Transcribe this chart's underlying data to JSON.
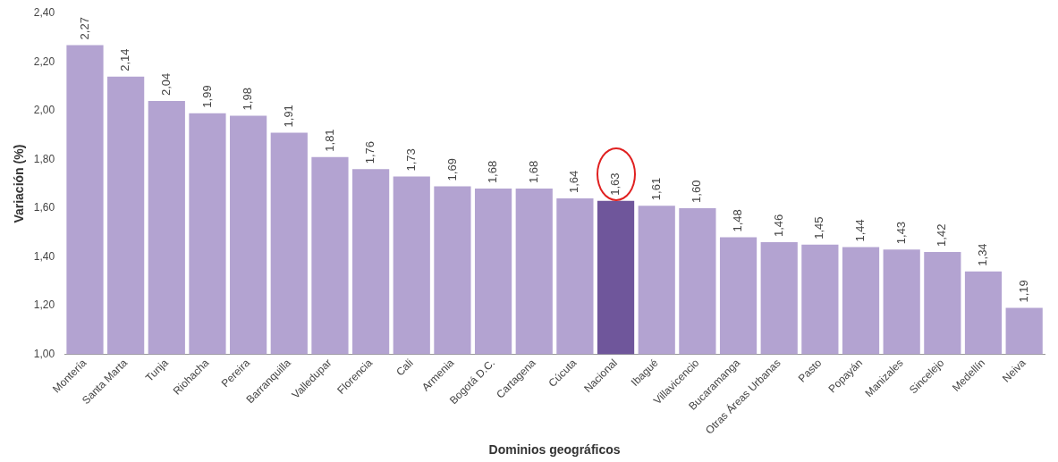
{
  "chart_data": {
    "type": "bar",
    "xlabel": "Dominios geográficos",
    "ylabel": "Variación (%)",
    "categories": [
      "Montería",
      "Santa Marta",
      "Tunja",
      "Riohacha",
      "Pereira",
      "Barranquilla",
      "Valledupar",
      "Florencia",
      "Cali",
      "Armenia",
      "Bogotá D.C.",
      "Cartagena",
      "Cúcuta",
      "Nacional",
      "Ibagué",
      "Villavicencio",
      "Bucaramanga",
      "Otras Áreas Urbanas",
      "Pasto",
      "Popayán",
      "Manizales",
      "Sincelejo",
      "Medellín",
      "Neiva"
    ],
    "values": [
      2.27,
      2.14,
      2.04,
      1.99,
      1.98,
      1.91,
      1.81,
      1.76,
      1.73,
      1.69,
      1.68,
      1.68,
      1.64,
      1.63,
      1.61,
      1.6,
      1.48,
      1.46,
      1.45,
      1.44,
      1.43,
      1.42,
      1.34,
      1.19
    ],
    "value_labels": [
      "2,27",
      "2,14",
      "2,04",
      "1,99",
      "1,98",
      "1,91",
      "1,81",
      "1,76",
      "1,73",
      "1,69",
      "1,68",
      "1,68",
      "1,64",
      "1,63",
      "1,61",
      "1,60",
      "1,48",
      "1,46",
      "1,45",
      "1,44",
      "1,43",
      "1,42",
      "1,34",
      "1,19"
    ],
    "colors": [
      "#b3a3d1",
      "#b3a3d1",
      "#b3a3d1",
      "#b3a3d1",
      "#b3a3d1",
      "#b3a3d1",
      "#b3a3d1",
      "#b3a3d1",
      "#b3a3d1",
      "#b3a3d1",
      "#b3a3d1",
      "#b3a3d1",
      "#b3a3d1",
      "#6f569b",
      "#b3a3d1",
      "#b3a3d1",
      "#b3a3d1",
      "#b3a3d1",
      "#b3a3d1",
      "#b3a3d1",
      "#b3a3d1",
      "#b3a3d1",
      "#b3a3d1",
      "#b3a3d1"
    ],
    "ylim": [
      1,
      2.4
    ],
    "yticks": [
      {
        "value": 1,
        "label": "1,00"
      },
      {
        "value": 1.2,
        "label": "1,20"
      },
      {
        "value": 1.4,
        "label": "1,40"
      },
      {
        "value": 1.6,
        "label": "1,60"
      },
      {
        "value": 1.8,
        "label": "1,80"
      },
      {
        "value": 2,
        "label": "2,00"
      },
      {
        "value": 2.2,
        "label": "2,20"
      },
      {
        "value": 2.4,
        "label": "2,40"
      }
    ],
    "grid": false,
    "legend": false
  }
}
